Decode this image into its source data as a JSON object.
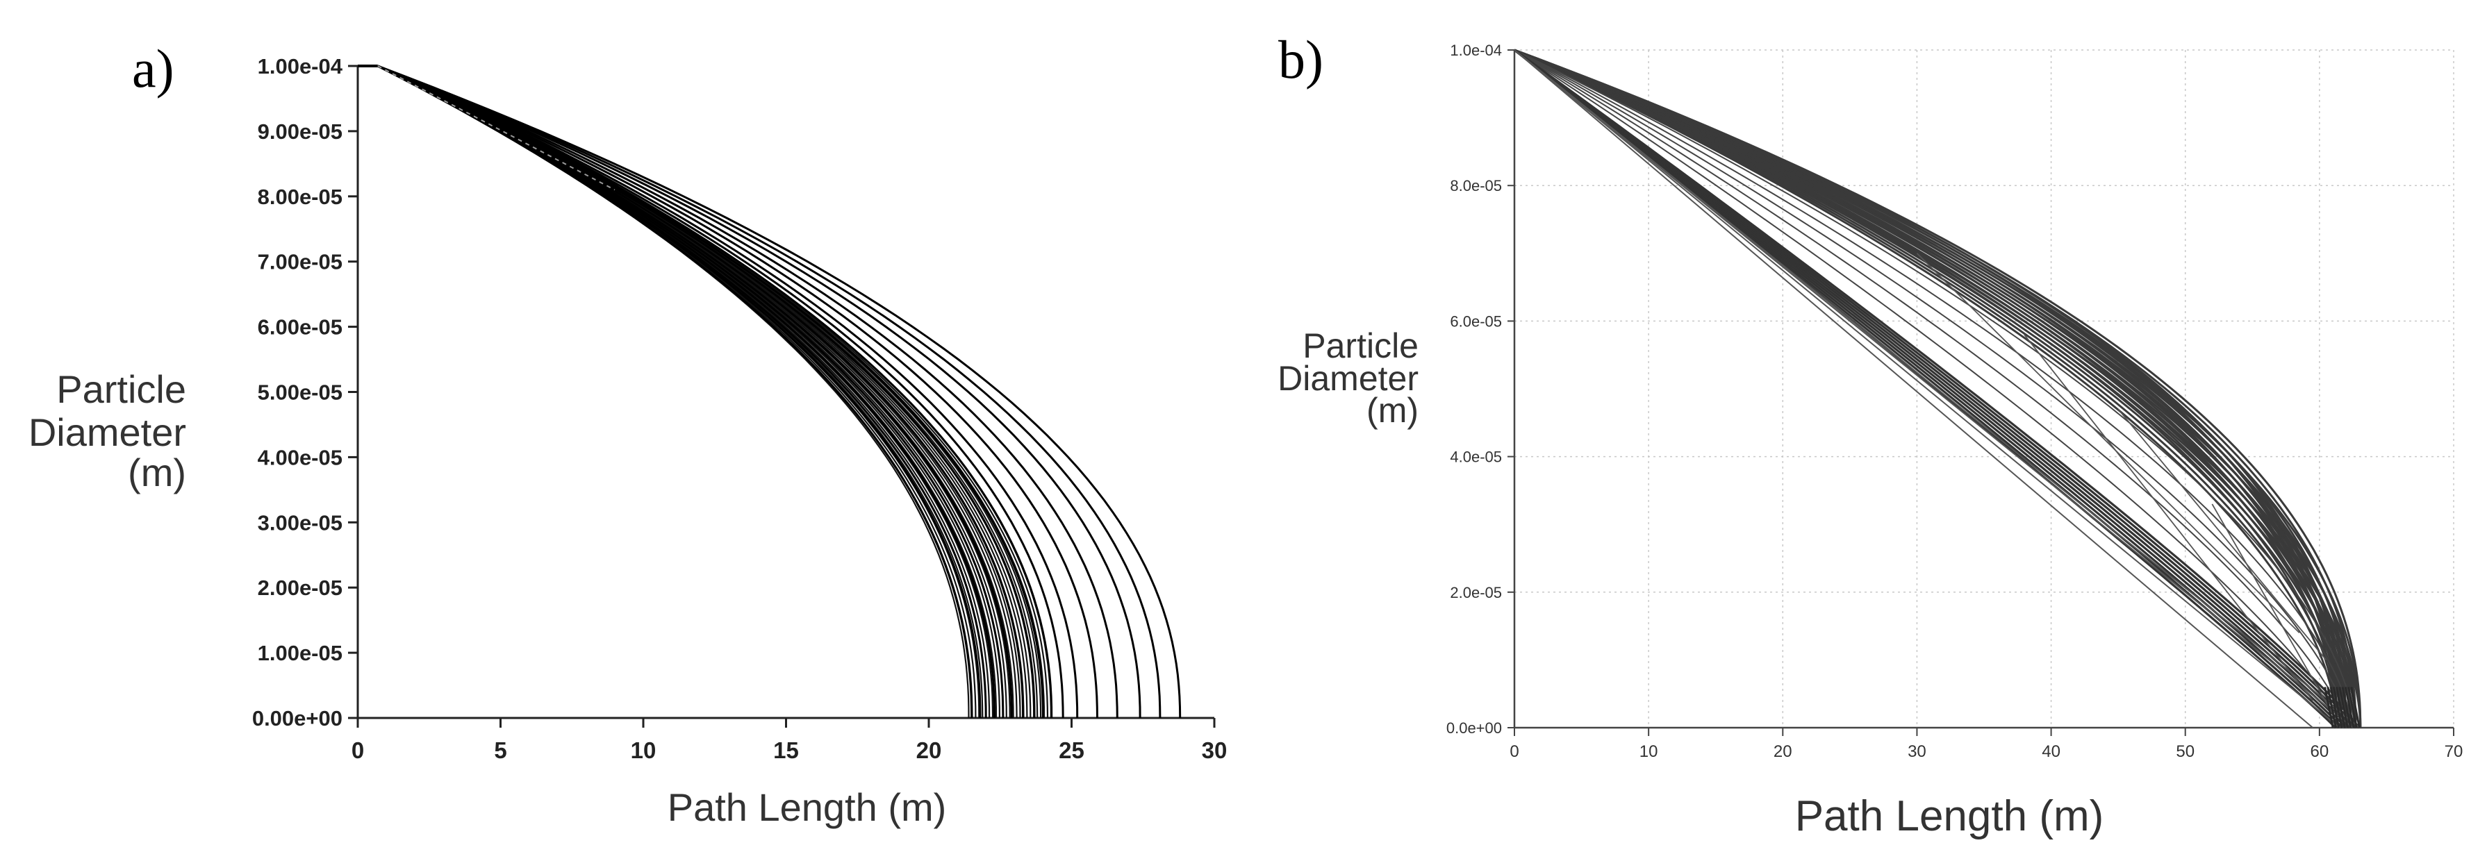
{
  "figure": {
    "panel_a_label": "a)",
    "panel_b_label": "b)"
  },
  "chart_data": [
    {
      "type": "line",
      "panel": "a)",
      "xlabel": "Path Length (m)",
      "ylabel_lines": [
        "Particle",
        "Diameter",
        "(m)"
      ],
      "xlim": [
        0,
        30
      ],
      "ylim": [
        0,
        0.0001
      ],
      "x_ticks": [
        "0",
        "5",
        "10",
        "15",
        "20",
        "25",
        "30"
      ],
      "y_ticks": [
        "0.00e+00",
        "1.00e-05",
        "2.00e-05",
        "3.00e-05",
        "4.00e-05",
        "5.00e-05",
        "6.00e-05",
        "7.00e-05",
        "8.00e-05",
        "9.00e-05",
        "1.00e-04"
      ],
      "grid": false,
      "series_description": "many particle trajectories; each starts at (0.7 m, 1.00e-04 m) and ends at diameter 0",
      "series_end_path_lengths": [
        21.5,
        21.8,
        22.0,
        22.3,
        22.6,
        22.9,
        23.3,
        23.7,
        24.0,
        24.3,
        24.7,
        25.2,
        25.9,
        26.6,
        27.4,
        28.1,
        28.8
      ]
    },
    {
      "type": "line",
      "panel": "b)",
      "xlabel": "Path Length (m)",
      "ylabel_lines": [
        "Particle",
        "Diameter",
        "(m)"
      ],
      "xlim": [
        0,
        70
      ],
      "ylim": [
        0,
        0.0001
      ],
      "x_ticks": [
        "0",
        "10",
        "20",
        "30",
        "40",
        "50",
        "60",
        "70"
      ],
      "y_ticks": [
        "0.0e+00",
        "2.0e-05",
        "4.0e-05",
        "6.0e-05",
        "8.0e-05",
        "1.0e-04"
      ],
      "grid": true,
      "series_description": "particle trajectories starting at (0, 1.0e-04 m), curving to end near 60-63 m at diameter 0; several straight diagonal lines",
      "series_end_path_lengths": [
        61.0,
        61.5,
        62.0,
        62.5,
        63.0,
        63.3
      ],
      "straight_line_ends": [
        59.5,
        61.5,
        62.5,
        63.0
      ]
    }
  ]
}
